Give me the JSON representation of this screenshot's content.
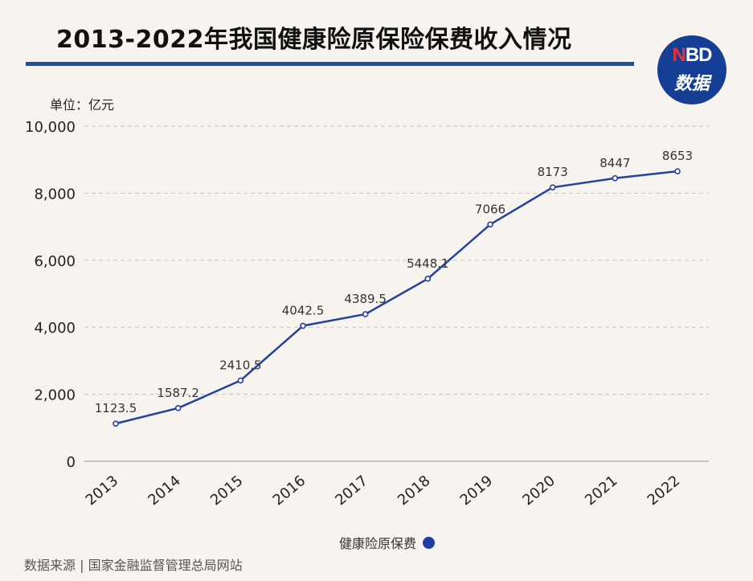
{
  "header": {
    "title": "2013-2022年我国健康险原保险保费收入情况",
    "logo_top": "NBD",
    "logo_bottom": "数据"
  },
  "footer": {
    "source": "数据来源 | 国家金融监督管理总局网站"
  },
  "chart_data": {
    "type": "line",
    "unit_label": "单位：亿元",
    "categories": [
      "2013",
      "2014",
      "2015",
      "2016",
      "2017",
      "2018",
      "2019",
      "2020",
      "2021",
      "2022"
    ],
    "series": [
      {
        "name": "健康险原保费",
        "values": [
          1123.5,
          1587.2,
          2410.5,
          4042.5,
          4389.5,
          5448.1,
          7066,
          8173,
          8447,
          8653
        ],
        "labels": [
          "1123.5",
          "1587.2",
          "2410.5",
          "4042.5",
          "4389.5",
          "5448.1",
          "7066",
          "8173",
          "8447",
          "8653"
        ],
        "color": "#2541a0"
      }
    ],
    "ylim": [
      0,
      10000
    ],
    "yticks": [
      0,
      2000,
      4000,
      6000,
      8000,
      10000
    ],
    "ytick_labels": [
      "0",
      "2,000",
      "4,000",
      "6,000",
      "8,000",
      "10,000"
    ],
    "grid": true,
    "legend_position": "bottom-center"
  }
}
